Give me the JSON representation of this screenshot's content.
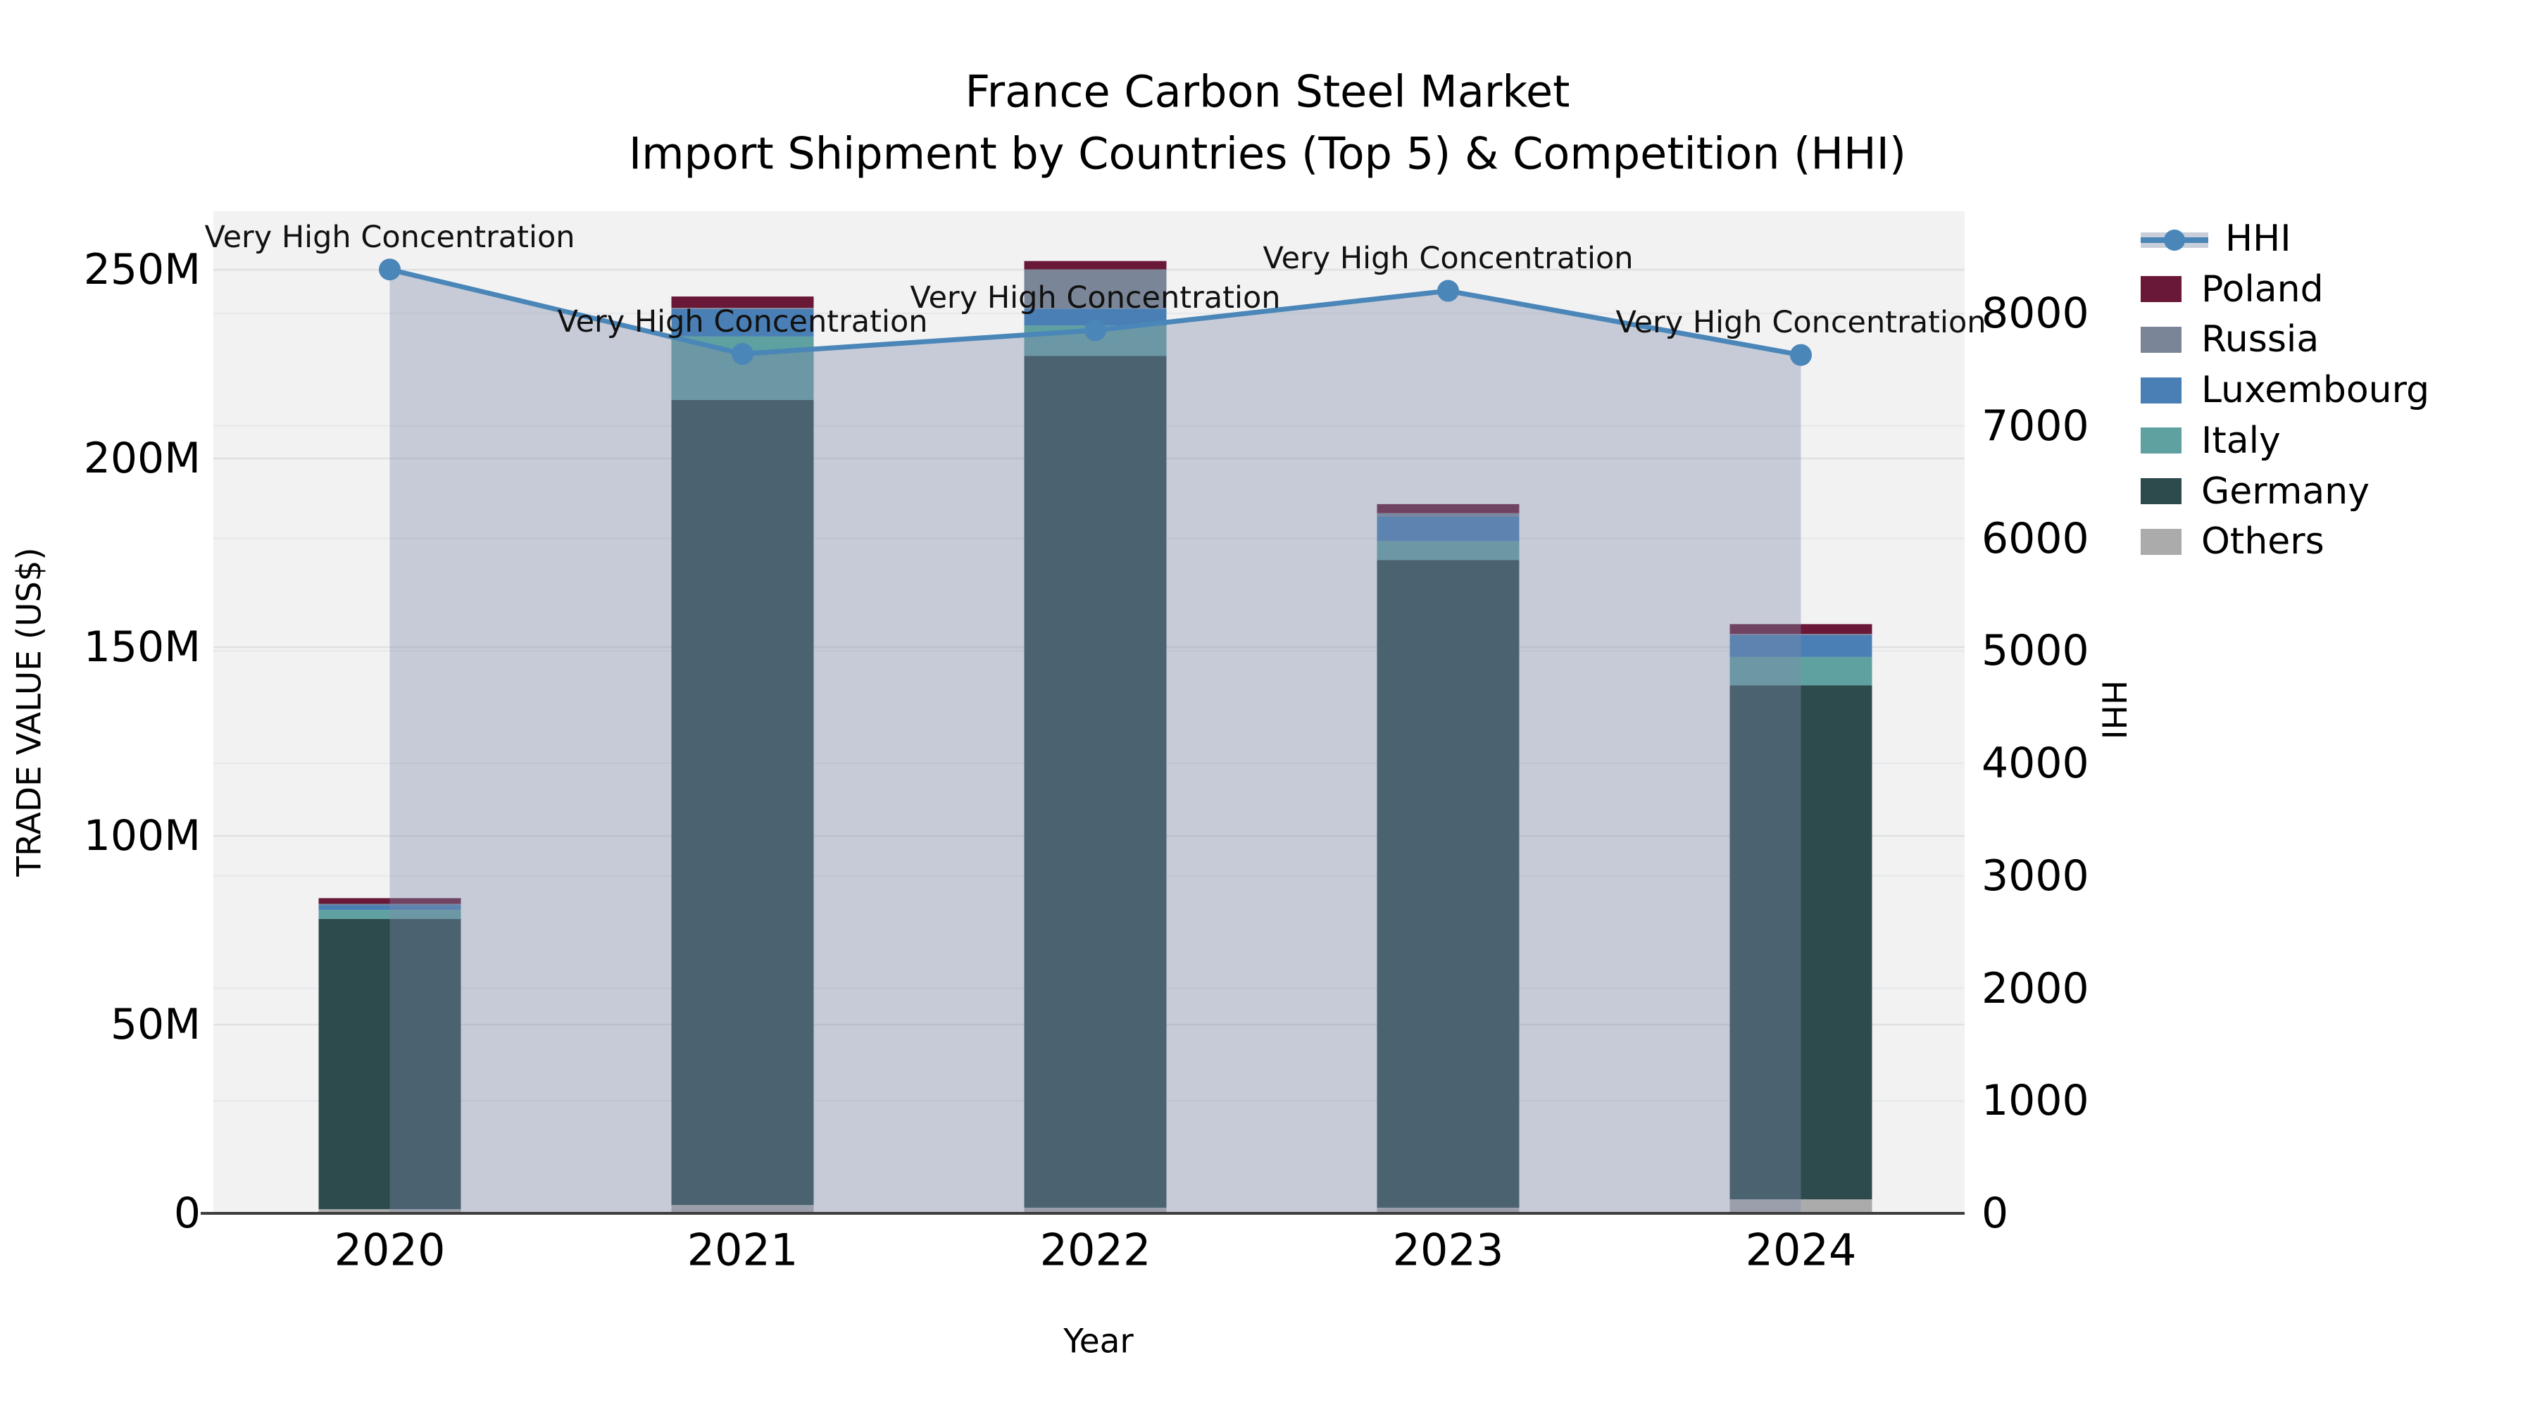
{
  "title": {
    "line1": "France Carbon Steel Market",
    "line2": "Import Shipment by Countries (Top 5) & Competition (HHI)"
  },
  "chart_data": {
    "type": "combo-stacked-bar-line",
    "categories": [
      "2020",
      "2021",
      "2022",
      "2023",
      "2024"
    ],
    "x": {
      "label": "Year"
    },
    "y_left": {
      "label": "TRADE VALUE (US$)",
      "unit": "million US$",
      "ticks": [
        "0",
        "50M",
        "100M",
        "150M",
        "200M",
        "250M"
      ],
      "tick_values": [
        0,
        50,
        100,
        150,
        200,
        250
      ],
      "range_top": 265.5
    },
    "y_right": {
      "label": "HHI",
      "ticks": [
        "0",
        "1000",
        "2000",
        "3000",
        "4000",
        "5000",
        "6000",
        "7000",
        "8000"
      ],
      "tick_values": [
        0,
        1000,
        2000,
        3000,
        4000,
        5000,
        6000,
        7000,
        8000
      ],
      "range_top": 8906
    },
    "bar_series": [
      {
        "name": "Poland",
        "color": "#691837",
        "values": [
          1.5,
          3.0,
          2.2,
          2.4,
          2.6
        ]
      },
      {
        "name": "Russia",
        "color": "#7a8597",
        "values": [
          0.3,
          0.3,
          10.4,
          0.9,
          0.3
        ]
      },
      {
        "name": "Luxembourg",
        "color": "#4a7fb5",
        "values": [
          1.3,
          7.3,
          4.5,
          6.5,
          5.8
        ]
      },
      {
        "name": "Italy",
        "color": "#5fa0a0",
        "values": [
          2.4,
          16.8,
          8.0,
          5.0,
          7.5
        ]
      },
      {
        "name": "Germany",
        "color": "#2d4b4c",
        "values": [
          76.9,
          213.3,
          225.7,
          171.6,
          136.2
        ]
      },
      {
        "name": "Others",
        "color": "#ababab",
        "values": [
          1.1,
          2.2,
          1.5,
          1.5,
          3.7
        ]
      }
    ],
    "stack_order_bottom_to_top": [
      "Others",
      "Germany",
      "Italy",
      "Luxembourg",
      "Russia",
      "Poland"
    ],
    "bar_totals": [
      83.5,
      242.9,
      252.3,
      187.9,
      156.1
    ],
    "line_series": {
      "name": "HHI",
      "color": "#4a86b8",
      "area_fill": "rgba(125,140,170,0.38)",
      "values": [
        8390,
        7640,
        7850,
        8200,
        7630
      ]
    },
    "annotations": [
      "Very High Concentration",
      "Very High Concentration",
      "Very High Concentration",
      "Very High Concentration",
      "Very High Concentration"
    ],
    "grid": {
      "on": true,
      "left_line_color": "#dfe0e2",
      "right_line_color": "#e8e9eb"
    },
    "plot_background": "#f2f2f3",
    "axis_line_color": "#3c3c3c",
    "legend_position": "right"
  },
  "legend": {
    "items": [
      {
        "label": "HHI",
        "type": "line",
        "color": "#4a86b8",
        "bg": "#c9cfda"
      },
      {
        "label": "Poland",
        "type": "patch",
        "color": "#691837"
      },
      {
        "label": "Russia",
        "type": "patch",
        "color": "#7a8597"
      },
      {
        "label": "Luxembourg",
        "type": "patch",
        "color": "#4a7fb5"
      },
      {
        "label": "Italy",
        "type": "patch",
        "color": "#5fa0a0"
      },
      {
        "label": "Germany",
        "type": "patch",
        "color": "#2d4b4c"
      },
      {
        "label": "Others",
        "type": "patch",
        "color": "#ababab"
      }
    ]
  }
}
